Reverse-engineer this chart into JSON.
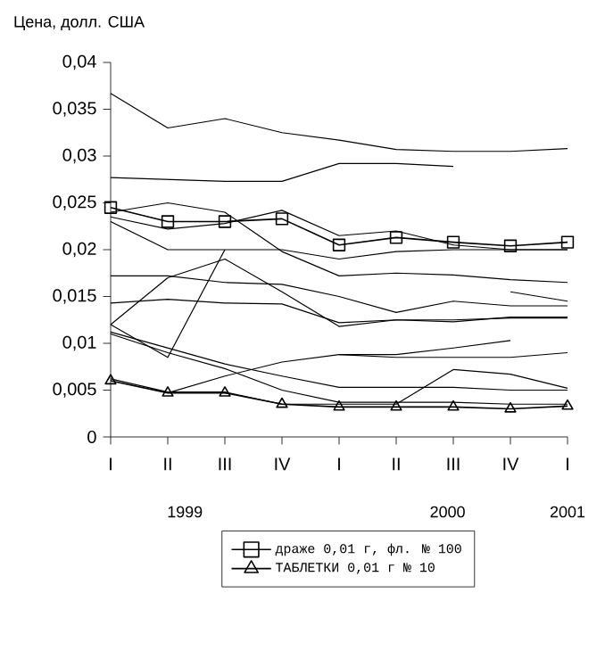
{
  "chart_data": {
    "type": "line",
    "ylabel": "Цена, долл. США",
    "categories": [
      "I",
      "II",
      "III",
      "IV",
      "I",
      "II",
      "III",
      "IV",
      "I"
    ],
    "annotations": [
      "1999",
      "2000",
      "2001"
    ],
    "ylim": [
      0,
      0.04
    ],
    "yticks": [
      {
        "value": 0,
        "label": "0"
      },
      {
        "value": 0.005,
        "label": "0,005"
      },
      {
        "value": 0.01,
        "label": "0,01"
      },
      {
        "value": 0.015,
        "label": "0,015"
      },
      {
        "value": 0.02,
        "label": "0,02"
      },
      {
        "value": 0.025,
        "label": "0,025"
      },
      {
        "value": 0.03,
        "label": "0,03"
      },
      {
        "value": 0.035,
        "label": "0,035"
      },
      {
        "value": 0.04,
        "label": "0,04"
      }
    ],
    "grid": false,
    "legend": "bottom",
    "marker": "none",
    "series": [
      {
        "color": "#000000",
        "values": [
          0.0367,
          0.033,
          0.034,
          0.0325,
          0.0317,
          0.0307,
          0.0305,
          0.0305,
          0.0308
        ]
      },
      {
        "color": "#000000",
        "values": [
          0.0277,
          0.0275,
          0.0273,
          0.0273,
          0.0292,
          0.0292,
          0.0289,
          null,
          null
        ]
      },
      {
        "color": "#000000",
        "values": [
          0.023,
          0.02,
          0.02,
          0.02,
          0.019,
          0.0198,
          0.02,
          0.02,
          0.02
        ]
      },
      {
        "color": "#000000",
        "values": [
          0.024,
          0.025,
          0.024,
          0.0198,
          0.0172,
          0.0175,
          0.0173,
          0.0168,
          0.0165
        ]
      },
      {
        "color": "#000000",
        "values": [
          0.0235,
          0.0222,
          0.0228,
          0.0242,
          0.0215,
          0.022,
          0.0205,
          0.02,
          0.02
        ]
      },
      {
        "color": "#000000",
        "values": [
          0.0172,
          0.0172,
          0.0165,
          0.0163,
          0.015,
          0.0133,
          0.0145,
          0.014,
          0.014
        ]
      },
      {
        "color": "#000000",
        "values": [
          0.0143,
          0.0147,
          0.0143,
          0.0142,
          0.0122,
          0.0125,
          0.0123,
          0.0128,
          0.0128
        ]
      },
      {
        "color": "#000000",
        "values": [
          0.012,
          0.0085,
          0.02,
          null,
          null,
          null,
          null,
          null,
          null
        ]
      },
      {
        "color": "#000000",
        "values": [
          0.012,
          0.017,
          0.019,
          0.0155,
          0.0118,
          0.0125,
          0.0125,
          0.0127,
          0.0127
        ]
      },
      {
        "color": "#000000",
        "values": [
          0.011,
          0.009,
          0.0073,
          0.005,
          0.0037,
          0.0037,
          0.0037,
          0.0035,
          0.0035
        ]
      },
      {
        "color": "#000000",
        "values": [
          0.0112,
          0.0095,
          0.0078,
          0.0065,
          0.0053,
          0.0053,
          0.0053,
          0.005,
          0.005
        ]
      },
      {
        "color": "#000000",
        "values": [
          null,
          0.0047,
          0.0065,
          0.008,
          0.0088,
          0.0088,
          0.0095,
          0.0103,
          null
        ]
      },
      {
        "color": "#000000",
        "values": [
          null,
          null,
          null,
          null,
          0.0088,
          0.0085,
          0.0085,
          0.0085,
          0.009
        ]
      },
      {
        "color": "#000000",
        "values": [
          0.0062,
          0.0048,
          0.0048,
          0.0035,
          0.0035,
          0.0035,
          0.0072,
          0.0067,
          0.0052
        ]
      },
      {
        "color": "#000000",
        "values": [
          null,
          null,
          null,
          null,
          null,
          null,
          null,
          0.0155,
          0.0145
        ]
      },
      {
        "name": "драже 0,01 г, фл. № 100",
        "color": "#000000",
        "marker": "square",
        "values": [
          0.0245,
          0.023,
          0.023,
          0.0233,
          0.0205,
          0.0213,
          0.0208,
          0.0204,
          0.0208
        ]
      },
      {
        "name": "ТАБЛЕТКИ 0,01 г № 10",
        "color": "#000000",
        "marker": "triangle",
        "values": [
          0.006,
          0.0047,
          0.0047,
          0.0035,
          0.0032,
          0.0032,
          0.0032,
          0.003,
          0.0033
        ]
      }
    ]
  }
}
